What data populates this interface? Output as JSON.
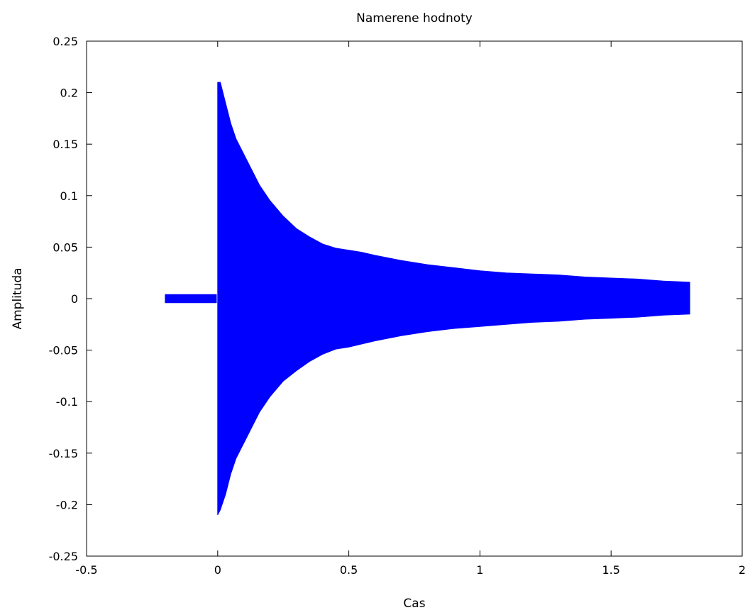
{
  "chart_data": {
    "type": "line",
    "title": "Namerene hodnoty",
    "xlabel": "Cas",
    "ylabel": "Amplituda",
    "xlim": [
      -0.5,
      2
    ],
    "ylim": [
      -0.25,
      0.25
    ],
    "xticks": [
      -0.5,
      0,
      0.5,
      1,
      1.5,
      2
    ],
    "xtick_labels": [
      "-0.5",
      "0",
      "0.5",
      "1",
      "1.5",
      "2"
    ],
    "yticks": [
      -0.25,
      -0.2,
      -0.15,
      -0.1,
      -0.05,
      0,
      0.05,
      0.1,
      0.15,
      0.2,
      0.25
    ],
    "ytick_labels": [
      "-0.25",
      "-0.2",
      "-0.15",
      "-0.1",
      "-0.05",
      "0",
      "0.05",
      "0.1",
      "0.15",
      "0.2",
      "0.25"
    ],
    "grid": false,
    "legend": "none",
    "series": [
      {
        "color": "#0000ff",
        "segments": [
          {
            "x": [
              -0.2,
              -0.18,
              -0.15,
              -0.12,
              -0.09,
              -0.06,
              -0.03,
              -0.005
            ],
            "upper": [
              0.004,
              0.004,
              0.004,
              0.004,
              0.004,
              0.004,
              0.004,
              0.004
            ],
            "lower": [
              -0.004,
              -0.004,
              -0.004,
              -0.004,
              -0.004,
              -0.004,
              -0.004,
              -0.004
            ]
          },
          {
            "x": [
              0.0,
              0.01,
              0.03,
              0.05,
              0.07,
              0.1,
              0.13,
              0.16,
              0.2,
              0.25,
              0.3,
              0.35,
              0.4,
              0.45,
              0.5,
              0.55,
              0.6,
              0.7,
              0.8,
              0.9,
              1.0,
              1.1,
              1.2,
              1.3,
              1.4,
              1.5,
              1.6,
              1.7,
              1.8
            ],
            "upper": [
              0.21,
              0.21,
              0.19,
              0.17,
              0.155,
              0.14,
              0.125,
              0.11,
              0.095,
              0.08,
              0.068,
              0.06,
              0.053,
              0.049,
              0.047,
              0.045,
              0.042,
              0.037,
              0.033,
              0.03,
              0.027,
              0.025,
              0.024,
              0.023,
              0.021,
              0.02,
              0.019,
              0.017,
              0.016
            ],
            "lower": [
              -0.21,
              -0.205,
              -0.19,
              -0.17,
              -0.155,
              -0.14,
              -0.125,
              -0.11,
              -0.095,
              -0.08,
              -0.07,
              -0.061,
              -0.054,
              -0.049,
              -0.047,
              -0.044,
              -0.041,
              -0.036,
              -0.032,
              -0.029,
              -0.027,
              -0.025,
              -0.023,
              -0.022,
              -0.02,
              -0.019,
              -0.018,
              -0.016,
              -0.015
            ]
          }
        ]
      }
    ]
  }
}
